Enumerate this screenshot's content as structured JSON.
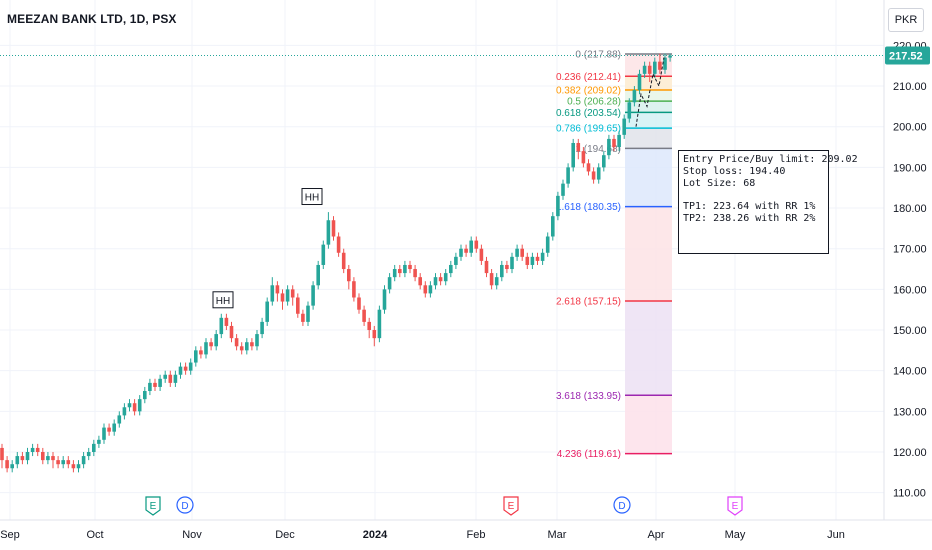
{
  "header": {
    "title": "MEEZAN BANK LTD, 1D, PSX",
    "currency_button": "PKR"
  },
  "price": {
    "last": "217.52",
    "last_color": "#26a69a"
  },
  "infobox": {
    "entry": "Entry Price/Buy limit: 209.02",
    "stop": "Stop loss: 194.40",
    "lot": "Lot Size: 68",
    "tp1": "TP1: 223.64 with RR 1%",
    "tp2": "TP2: 238.26 with RR 2%"
  },
  "chart_data": {
    "type": "candlestick",
    "title": "MEEZAN BANK LTD, 1D, PSX",
    "y_axis": {
      "ticks": [
        110,
        120,
        130,
        140,
        150,
        160,
        170,
        180,
        190,
        200,
        210,
        220
      ],
      "range": [
        106,
        224
      ]
    },
    "x_axis": {
      "labels": [
        {
          "label": "Sep",
          "bold": false
        },
        {
          "label": "Oct",
          "bold": false
        },
        {
          "label": "Nov",
          "bold": false
        },
        {
          "label": "Dec",
          "bold": false
        },
        {
          "label": "2024",
          "bold": true
        },
        {
          "label": "Feb",
          "bold": false
        },
        {
          "label": "Mar",
          "bold": false
        },
        {
          "label": "Apr",
          "bold": false
        },
        {
          "label": "May",
          "bold": false
        },
        {
          "label": "Jun",
          "bold": false
        }
      ]
    },
    "colors": {
      "up": "#26a69a",
      "down": "#ef5350"
    },
    "fib_levels": [
      {
        "label": "0 (217.88)",
        "price": 217.88,
        "color": "#787b86"
      },
      {
        "label": "0.236 (212.41)",
        "price": 212.41,
        "color": "#f23645"
      },
      {
        "label": "0.382 (209.02)",
        "price": 209.02,
        "color": "#ff9800"
      },
      {
        "label": "0.5 (206.28)",
        "price": 206.28,
        "color": "#4caf50"
      },
      {
        "label": "0.618 (203.54)",
        "price": 203.54,
        "color": "#089981"
      },
      {
        "label": "0.786 (199.65)",
        "price": 199.65,
        "color": "#00bcd4"
      },
      {
        "label": "1 (194.68)",
        "price": 194.68,
        "color": "#787b86"
      },
      {
        "label": "1.618 (180.35)",
        "price": 180.35,
        "color": "#2962ff"
      },
      {
        "label": "2.618 (157.15)",
        "price": 157.15,
        "color": "#f23645"
      },
      {
        "label": "3.618 (133.95)",
        "price": 133.95,
        "color": "#9c27b0"
      },
      {
        "label": "4.236 (119.61)",
        "price": 119.61,
        "color": "#e91e63"
      }
    ],
    "pattern_labels": [
      {
        "text": "HH",
        "at_price": 153.5
      },
      {
        "text": "HH",
        "at_price": 178.9
      }
    ],
    "event_markers": [
      {
        "text": "E",
        "kind": "earnings",
        "color": "#089981"
      },
      {
        "text": "D",
        "kind": "dividend",
        "color": "#2962ff"
      },
      {
        "text": "E",
        "kind": "earnings",
        "color": "#f23645"
      },
      {
        "text": "D",
        "kind": "dividend",
        "color": "#2962ff"
      },
      {
        "text": "E",
        "kind": "earnings",
        "color": "#e040fb"
      }
    ],
    "candles": [
      [
        121,
        118,
        122,
        116
      ],
      [
        118,
        116,
        119,
        115
      ],
      [
        116,
        117,
        118,
        115
      ],
      [
        117,
        119,
        120,
        116
      ],
      [
        119,
        118,
        120,
        117
      ],
      [
        118,
        120,
        121,
        117
      ],
      [
        120,
        121,
        122,
        119
      ],
      [
        121,
        120,
        122,
        119
      ],
      [
        120,
        118,
        121,
        117
      ],
      [
        118,
        119,
        120,
        117
      ],
      [
        119,
        118,
        120,
        116
      ],
      [
        118,
        117,
        119,
        116
      ],
      [
        117,
        118,
        119,
        116
      ],
      [
        118,
        117,
        119,
        116
      ],
      [
        117,
        116,
        118,
        115
      ],
      [
        116,
        117,
        118,
        115
      ],
      [
        117,
        119,
        120,
        116
      ],
      [
        119,
        120,
        121,
        118
      ],
      [
        120,
        122,
        123,
        119
      ],
      [
        122,
        123,
        124,
        121
      ],
      [
        123,
        126,
        127,
        122
      ],
      [
        126,
        125,
        127,
        124
      ],
      [
        125,
        127,
        128,
        124
      ],
      [
        127,
        129,
        130,
        126
      ],
      [
        129,
        131,
        132,
        128
      ],
      [
        131,
        132,
        133,
        130
      ],
      [
        132,
        130,
        133,
        129
      ],
      [
        130,
        133,
        134,
        129
      ],
      [
        133,
        135,
        136,
        132
      ],
      [
        135,
        137,
        138,
        134
      ],
      [
        137,
        136,
        138,
        135
      ],
      [
        136,
        138,
        139,
        135
      ],
      [
        138,
        139,
        140,
        137
      ],
      [
        139,
        137,
        140,
        136
      ],
      [
        137,
        139,
        140,
        136
      ],
      [
        139,
        141,
        142,
        138
      ],
      [
        141,
        140,
        142,
        139
      ],
      [
        140,
        142,
        143,
        139
      ],
      [
        142,
        145,
        146,
        141
      ],
      [
        145,
        144,
        146,
        143
      ],
      [
        144,
        147,
        148,
        143
      ],
      [
        147,
        146,
        148,
        145
      ],
      [
        146,
        149,
        150,
        145
      ],
      [
        149,
        153,
        154,
        148
      ],
      [
        153,
        151,
        154,
        150
      ],
      [
        151,
        148,
        152,
        147
      ],
      [
        148,
        146,
        149,
        145
      ],
      [
        146,
        145,
        147,
        144
      ],
      [
        145,
        147,
        148,
        144
      ],
      [
        147,
        146,
        148,
        145
      ],
      [
        146,
        149,
        150,
        145
      ],
      [
        149,
        152,
        153,
        148
      ],
      [
        152,
        157,
        158,
        151
      ],
      [
        157,
        161,
        163,
        156
      ],
      [
        161,
        159,
        162,
        157
      ],
      [
        159,
        157,
        160,
        155
      ],
      [
        157,
        160,
        161,
        156
      ],
      [
        160,
        158,
        161,
        156
      ],
      [
        158,
        154,
        159,
        153
      ],
      [
        154,
        152,
        155,
        151
      ],
      [
        152,
        156,
        157,
        151
      ],
      [
        156,
        161,
        162,
        155
      ],
      [
        161,
        166,
        167,
        160
      ],
      [
        166,
        171,
        172,
        165
      ],
      [
        171,
        177,
        179,
        170
      ],
      [
        177,
        173,
        178,
        172
      ],
      [
        173,
        169,
        174,
        168
      ],
      [
        169,
        165,
        170,
        164
      ],
      [
        165,
        162,
        166,
        160
      ],
      [
        162,
        158,
        163,
        157
      ],
      [
        158,
        155,
        159,
        154
      ],
      [
        155,
        152,
        156,
        151
      ],
      [
        152,
        150,
        153,
        148
      ],
      [
        150,
        148,
        151,
        146
      ],
      [
        148,
        155,
        156,
        147
      ],
      [
        155,
        160,
        161,
        154
      ],
      [
        160,
        163,
        164,
        159
      ],
      [
        163,
        165,
        166,
        162
      ],
      [
        165,
        164,
        166,
        163
      ],
      [
        164,
        166,
        167,
        163
      ],
      [
        166,
        165,
        167,
        164
      ],
      [
        165,
        163,
        166,
        162
      ],
      [
        163,
        161,
        164,
        160
      ],
      [
        161,
        159,
        162,
        158
      ],
      [
        159,
        161,
        162,
        158
      ],
      [
        161,
        163,
        164,
        160
      ],
      [
        163,
        162,
        164,
        161
      ],
      [
        162,
        164,
        165,
        161
      ],
      [
        164,
        166,
        167,
        163
      ],
      [
        166,
        168,
        169,
        165
      ],
      [
        168,
        170,
        171,
        167
      ],
      [
        170,
        169,
        171,
        168
      ],
      [
        169,
        172,
        173,
        168
      ],
      [
        172,
        170,
        173,
        169
      ],
      [
        170,
        167,
        171,
        166
      ],
      [
        167,
        164,
        168,
        163
      ],
      [
        164,
        161,
        165,
        160
      ],
      [
        161,
        163,
        164,
        160
      ],
      [
        163,
        166,
        167,
        162
      ],
      [
        166,
        165,
        167,
        164
      ],
      [
        165,
        168,
        169,
        164
      ],
      [
        168,
        170,
        171,
        167
      ],
      [
        170,
        168,
        171,
        167
      ],
      [
        168,
        166,
        169,
        165
      ],
      [
        166,
        168,
        169,
        165
      ],
      [
        168,
        167,
        169,
        166
      ],
      [
        167,
        169,
        170,
        166
      ],
      [
        169,
        173,
        174,
        168
      ],
      [
        173,
        178,
        179,
        172
      ],
      [
        178,
        183,
        184,
        177
      ],
      [
        183,
        186,
        187,
        182
      ],
      [
        186,
        190,
        191,
        185
      ],
      [
        190,
        196,
        197,
        189
      ],
      [
        196,
        194,
        197,
        192
      ],
      [
        194,
        191,
        195,
        190
      ],
      [
        191,
        189,
        192,
        188
      ],
      [
        189,
        187,
        190,
        186
      ],
      [
        187,
        190,
        191,
        186
      ],
      [
        190,
        193,
        194,
        189
      ],
      [
        193,
        197,
        198,
        192
      ],
      [
        197,
        195,
        198,
        194
      ],
      [
        195,
        198,
        199,
        194
      ],
      [
        198,
        202,
        203,
        197
      ],
      [
        202,
        206,
        207,
        201
      ],
      [
        206,
        209,
        210,
        205
      ],
      [
        209,
        213,
        214,
        208
      ],
      [
        213,
        215,
        216,
        212
      ],
      [
        215,
        213,
        216,
        211
      ],
      [
        213,
        216,
        217,
        212
      ],
      [
        216,
        214,
        218,
        213
      ],
      [
        214,
        217,
        218,
        213
      ],
      [
        217,
        217.5,
        218,
        216
      ]
    ]
  }
}
